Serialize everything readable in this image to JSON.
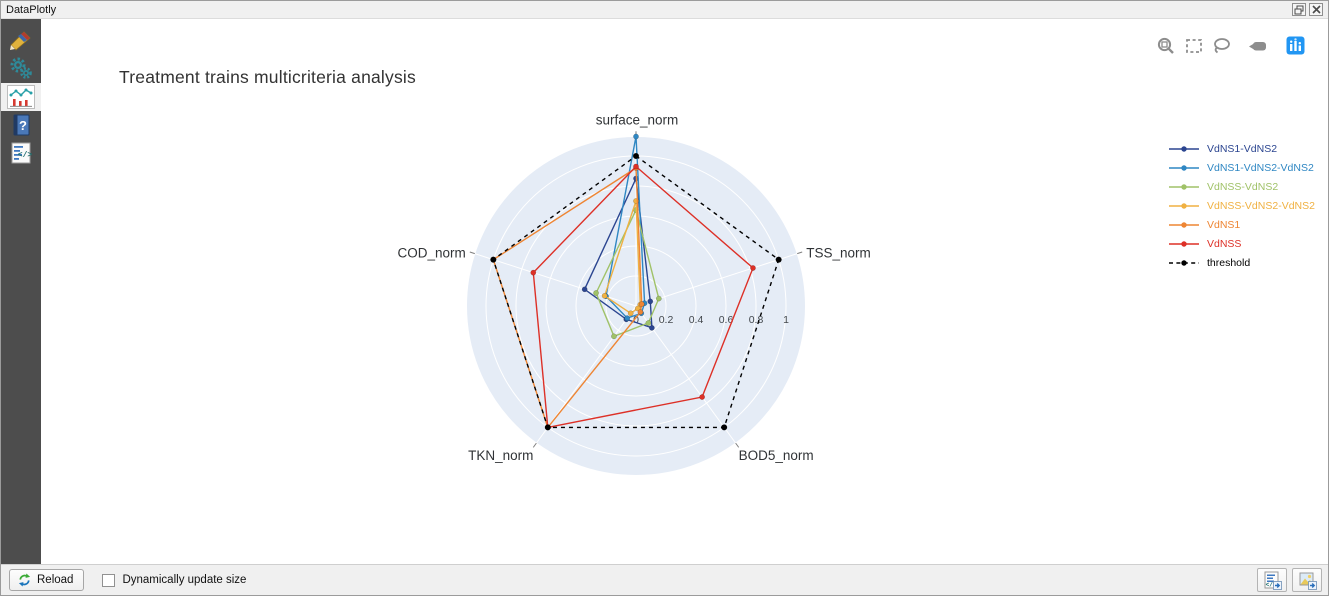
{
  "window": {
    "title": "DataPlotly",
    "controls": {
      "float_icon": "float-panel-icon",
      "close_icon": "close-icon"
    }
  },
  "sidebar": {
    "icons": [
      {
        "name": "plot-properties-brush-icon",
        "selected": false
      },
      {
        "name": "plot-settings-gears-icon",
        "selected": false
      },
      {
        "name": "plot-canvas-chart-icon",
        "selected": true
      },
      {
        "name": "help-book-icon",
        "selected": false
      },
      {
        "name": "code-console-icon",
        "selected": false
      }
    ]
  },
  "modebar": {
    "icons": [
      "zoom-icon",
      "box-select-icon",
      "lasso-select-icon",
      "hover-closest-icon",
      "plotly-logo-icon"
    ]
  },
  "chart_data": {
    "type": "radar",
    "title": "Treatment trains multicriteria analysis",
    "categories": [
      "surface_norm",
      "TSS_norm",
      "BOD5_norm",
      "TKN_norm",
      "COD_norm"
    ],
    "radial_ticks": [
      0,
      0.2,
      0.4,
      0.6,
      0.8,
      1
    ],
    "radial_range": [
      0,
      1.13
    ],
    "grid": true,
    "polar_bgcolor": "#e5ecf6",
    "grid_color": "#ffffff",
    "legend_position": "right",
    "series": [
      {
        "name": "VdNS1-VdNS2",
        "color": "#2b4590",
        "dash": false,
        "values": [
          0.85,
          0.1,
          0.18,
          0.11,
          0.36
        ]
      },
      {
        "name": "VdNS1-VdNS2-VdNS2",
        "color": "#2f87c3",
        "dash": false,
        "values": [
          1.13,
          0.06,
          0.06,
          0.1,
          0.21
        ]
      },
      {
        "name": "VdNSS-VdNS2",
        "color": "#a0c268",
        "dash": false,
        "values": [
          0.64,
          0.16,
          0.14,
          0.25,
          0.28
        ]
      },
      {
        "name": "VdNSS-VdNS2-VdNS2",
        "color": "#f0b142",
        "dash": false,
        "values": [
          0.7,
          0.03,
          0.02,
          0.06,
          0.22
        ]
      },
      {
        "name": "VdNS1",
        "color": "#ee8533",
        "dash": false,
        "values": [
          0.92,
          0.04,
          0.05,
          1.0,
          1.0
        ]
      },
      {
        "name": "VdNSS",
        "color": "#dd3027",
        "dash": false,
        "values": [
          0.93,
          0.82,
          0.75,
          1.0,
          0.72
        ]
      },
      {
        "name": "threshold",
        "color": "#000000",
        "dash": true,
        "values": [
          1.0,
          1.0,
          1.0,
          1.0,
          1.0
        ]
      }
    ]
  },
  "footer": {
    "reload_label": "Reload",
    "checkbox_label": "Dynamically update size",
    "checkbox_checked": false,
    "export_icons": [
      "export-html-icon",
      "export-image-icon"
    ]
  }
}
